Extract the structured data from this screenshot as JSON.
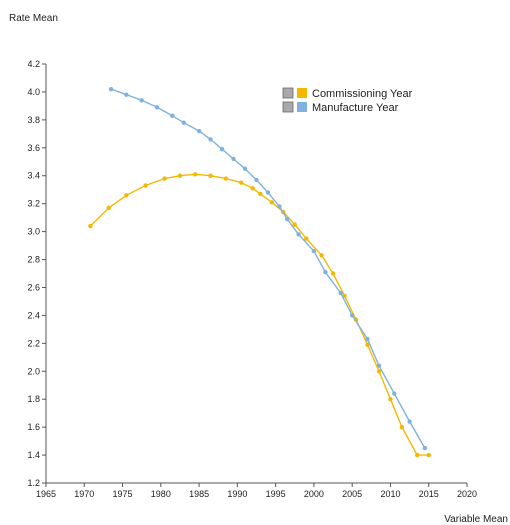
{
  "chart_data": {
    "type": "line",
    "xlabel": "Variable Mean",
    "ylabel": "Rate Mean",
    "xlim": [
      1965,
      2020
    ],
    "ylim": [
      1.2,
      4.2
    ],
    "x_ticks": [
      "1965",
      "1970",
      "1975",
      "1980",
      "1985",
      "1990",
      "1995",
      "2000",
      "2005",
      "2010",
      "2015",
      "2020"
    ],
    "y_ticks": [
      "1.2",
      "1.4",
      "1.6",
      "1.8",
      "2.0",
      "2.2",
      "2.4",
      "2.6",
      "2.8",
      "3.0",
      "3.2",
      "3.4",
      "3.6",
      "3.8",
      "4.0",
      "4.2"
    ],
    "grid": false,
    "legend_position": "top-right",
    "series": [
      {
        "name": "Commissioning Year",
        "color": "#f5b800",
        "x": [
          1970.8,
          1973.2,
          1975.5,
          1978.0,
          1980.5,
          1982.5,
          1984.5,
          1986.5,
          1988.5,
          1990.5,
          1992.0,
          1993.0,
          1994.5,
          1996.0,
          1997.5,
          1999.0,
          2001.0,
          2002.5,
          2004.0,
          2005.5,
          2007.0,
          2008.5,
          2010.0,
          2011.5,
          2013.5,
          2015.0
        ],
        "y": [
          3.04,
          3.17,
          3.26,
          3.33,
          3.38,
          3.4,
          3.41,
          3.4,
          3.38,
          3.35,
          3.31,
          3.27,
          3.21,
          3.14,
          3.05,
          2.95,
          2.83,
          2.7,
          2.54,
          2.37,
          2.19,
          2.0,
          1.8,
          1.6,
          1.4,
          1.4
        ]
      },
      {
        "name": "Manufacture Year",
        "color": "#7fb2dd",
        "x": [
          1973.5,
          1975.5,
          1977.5,
          1979.5,
          1981.5,
          1983.0,
          1985.0,
          1986.5,
          1988.0,
          1989.5,
          1991.0,
          1992.5,
          1994.0,
          1995.5,
          1996.5,
          1998.0,
          2000.0,
          2001.5,
          2003.5,
          2005.0,
          2007.0,
          2008.5,
          2010.5,
          2012.5,
          2014.5
        ],
        "y": [
          4.02,
          3.98,
          3.94,
          3.89,
          3.83,
          3.78,
          3.72,
          3.66,
          3.59,
          3.52,
          3.45,
          3.37,
          3.28,
          3.18,
          3.09,
          2.98,
          2.86,
          2.71,
          2.56,
          2.4,
          2.23,
          2.04,
          1.84,
          1.64,
          1.45
        ]
      }
    ]
  }
}
